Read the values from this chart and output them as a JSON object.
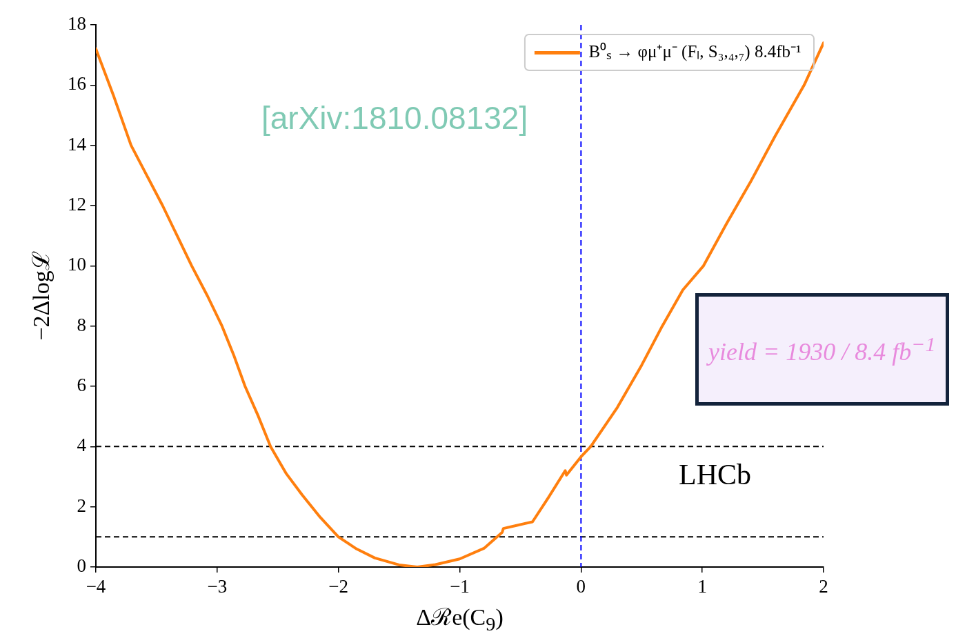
{
  "chart_data": {
    "type": "line",
    "xlabel": "Δℛe(C$_{9}$)",
    "ylabel": "−2Δlogℒ",
    "x": [
      -4,
      -3.85,
      -3.71,
      -3.58,
      -3.45,
      -3.33,
      -3.21,
      -3.08,
      -2.96,
      -2.86,
      -2.77,
      -2.66,
      -2.56,
      -2.43,
      -2.3,
      -2.15,
      -2.0,
      -1.85,
      -1.7,
      -1.5,
      -1.35,
      -1.2,
      -1.0,
      -0.8,
      -0.65,
      -0.64,
      -0.4,
      -0.27,
      -0.13,
      -0.12,
      0,
      0.08,
      0.3,
      0.5,
      0.67,
      0.84,
      1.01,
      1.2,
      1.4,
      1.6,
      1.84,
      2
    ],
    "series": [
      {
        "name": "B⁰ₛ → φμ⁺μ⁻ (Fₗ, S₃,₄,₇) 8.4fb⁻¹",
        "color": "#ff7f0e",
        "values": [
          17.2,
          15.6,
          14,
          13,
          12,
          11,
          10,
          9,
          8,
          7,
          6,
          5,
          4,
          3.1,
          2.4,
          1.65,
          1.0,
          0.6,
          0.3,
          0.07,
          0,
          0.08,
          0.27,
          0.62,
          1.15,
          1.28,
          1.5,
          2.3,
          3.2,
          3.05,
          3.66,
          4,
          5.3,
          6.7,
          8,
          9.2,
          10,
          11.4,
          12.8,
          14.3,
          16,
          17.4
        ]
      }
    ],
    "xlim": [
      -4,
      2
    ],
    "xticks": [
      -4,
      -3,
      -2,
      -1,
      0,
      1,
      2
    ],
    "ylim": [
      0,
      18
    ],
    "yticks": [
      0,
      2,
      4,
      6,
      8,
      10,
      12,
      14,
      16,
      18
    ],
    "grid": false,
    "legend": "top right",
    "marker": "none",
    "line_style": "solid",
    "ref_lines": [
      {
        "axis": "y",
        "value": 4,
        "color": "#000000",
        "line_style": "dashed"
      },
      {
        "axis": "y",
        "value": 1,
        "color": "#000000",
        "line_style": "dashed"
      },
      {
        "axis": "x",
        "value": 0,
        "color": "#0000ff",
        "line_style": "dashed"
      }
    ],
    "annotations": [
      "[arXiv:1810.08132]",
      "LHCb",
      "yield = 1930 / 8.4 fb$^{−1}$"
    ]
  }
}
